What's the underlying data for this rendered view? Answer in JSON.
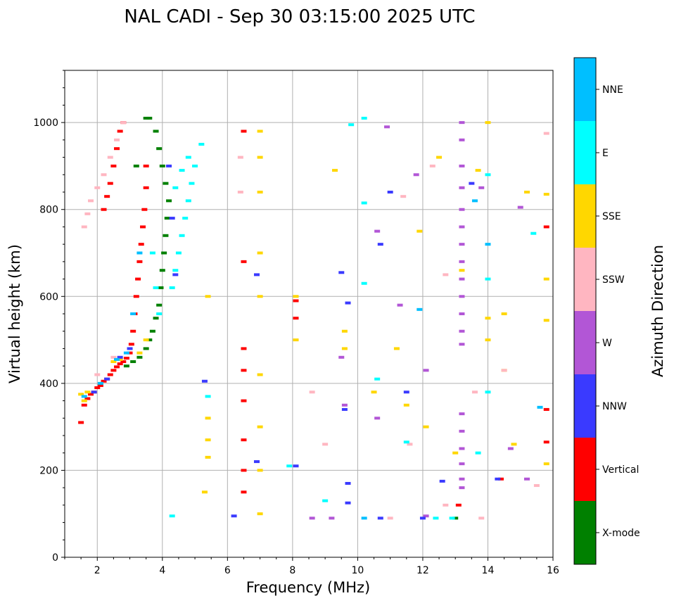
{
  "chart_data": {
    "type": "scatter",
    "title": "NAL CADI - Sep 30 03:15:00 2025 UTC",
    "xlabel": "Frequency (MHz)",
    "ylabel": "Virtual height (km)",
    "xlim": [
      1,
      16
    ],
    "ylim": [
      0,
      1120
    ],
    "xticks": [
      "2",
      "4",
      "6",
      "8",
      "10",
      "12",
      "14",
      "16"
    ],
    "yticks": [
      "0",
      "200",
      "400",
      "600",
      "800",
      "1000"
    ],
    "grid": true,
    "colorbar": {
      "label": "Azimuth Direction",
      "categories": [
        {
          "name": "X-mode",
          "color": "#008000"
        },
        {
          "name": "Vertical",
          "color": "#ff0000"
        },
        {
          "name": "NNW",
          "color": "#3a3aff"
        },
        {
          "name": "W",
          "color": "#b256d6"
        },
        {
          "name": "SSW",
          "color": "#ffb6c1"
        },
        {
          "name": "SSE",
          "color": "#ffd700"
        },
        {
          "name": "E",
          "color": "#00ffff"
        },
        {
          "name": "NNE",
          "color": "#00bfff"
        }
      ]
    },
    "series": [
      {
        "name": "Vertical",
        "color": "#ff0000",
        "points": [
          [
            1.5,
            310
          ],
          [
            1.6,
            350
          ],
          [
            1.7,
            365
          ],
          [
            1.8,
            375
          ],
          [
            1.9,
            380
          ],
          [
            2.0,
            390
          ],
          [
            2.1,
            395
          ],
          [
            2.2,
            405
          ],
          [
            2.3,
            410
          ],
          [
            2.4,
            420
          ],
          [
            2.5,
            430
          ],
          [
            2.6,
            438
          ],
          [
            2.7,
            445
          ],
          [
            2.8,
            450
          ],
          [
            2.9,
            458
          ],
          [
            3.0,
            470
          ],
          [
            3.05,
            490
          ],
          [
            3.1,
            520
          ],
          [
            3.15,
            560
          ],
          [
            3.2,
            600
          ],
          [
            3.25,
            640
          ],
          [
            3.3,
            680
          ],
          [
            3.35,
            720
          ],
          [
            3.4,
            760
          ],
          [
            3.45,
            800
          ],
          [
            3.5,
            850
          ],
          [
            3.5,
            900
          ],
          [
            2.2,
            800
          ],
          [
            2.3,
            830
          ],
          [
            2.4,
            860
          ],
          [
            2.5,
            900
          ],
          [
            2.6,
            940
          ],
          [
            2.7,
            980
          ],
          [
            2.8,
            1000
          ],
          [
            6.5,
            980
          ],
          [
            6.5,
            680
          ],
          [
            6.5,
            480
          ],
          [
            6.5,
            430
          ],
          [
            6.5,
            360
          ],
          [
            6.5,
            270
          ],
          [
            6.5,
            200
          ],
          [
            6.5,
            150
          ],
          [
            8.1,
            550
          ],
          [
            8.1,
            590
          ],
          [
            13.1,
            120
          ],
          [
            14.4,
            180
          ],
          [
            15.8,
            340
          ],
          [
            15.8,
            265
          ],
          [
            15.8,
            760
          ]
        ]
      },
      {
        "name": "X-mode",
        "color": "#008000",
        "points": [
          [
            2.9,
            440
          ],
          [
            3.1,
            450
          ],
          [
            3.3,
            460
          ],
          [
            3.5,
            480
          ],
          [
            3.6,
            500
          ],
          [
            3.7,
            520
          ],
          [
            3.8,
            550
          ],
          [
            3.9,
            580
          ],
          [
            3.95,
            620
          ],
          [
            4.0,
            660
          ],
          [
            4.05,
            700
          ],
          [
            4.1,
            740
          ],
          [
            4.15,
            780
          ],
          [
            4.2,
            820
          ],
          [
            4.1,
            860
          ],
          [
            4.0,
            900
          ],
          [
            3.9,
            940
          ],
          [
            3.8,
            980
          ],
          [
            3.6,
            1010
          ],
          [
            3.5,
            1010
          ],
          [
            3.2,
            900
          ],
          [
            13.0,
            90
          ]
        ]
      },
      {
        "name": "SSE",
        "color": "#ffd700",
        "points": [
          [
            1.5,
            375
          ],
          [
            1.6,
            360
          ],
          [
            1.7,
            380
          ],
          [
            2.5,
            450
          ],
          [
            2.7,
            455
          ],
          [
            3.3,
            470
          ],
          [
            3.5,
            500
          ],
          [
            5.3,
            150
          ],
          [
            5.4,
            230
          ],
          [
            5.4,
            270
          ],
          [
            5.4,
            320
          ],
          [
            5.4,
            600
          ],
          [
            7.0,
            100
          ],
          [
            7.0,
            200
          ],
          [
            7.0,
            300
          ],
          [
            7.0,
            420
          ],
          [
            7.0,
            600
          ],
          [
            7.0,
            700
          ],
          [
            7.0,
            840
          ],
          [
            7.0,
            920
          ],
          [
            7.0,
            980
          ],
          [
            8.1,
            600
          ],
          [
            8.1,
            500
          ],
          [
            9.3,
            890
          ],
          [
            9.6,
            520
          ],
          [
            9.6,
            480
          ],
          [
            10.5,
            380
          ],
          [
            11.2,
            480
          ],
          [
            11.5,
            350
          ],
          [
            11.9,
            750
          ],
          [
            12.1,
            300
          ],
          [
            12.5,
            920
          ],
          [
            13.2,
            660
          ],
          [
            13.7,
            890
          ],
          [
            14.0,
            550
          ],
          [
            14.0,
            500
          ],
          [
            14.0,
            1000
          ],
          [
            14.5,
            560
          ],
          [
            14.5,
            430
          ],
          [
            14.8,
            260
          ],
          [
            15.2,
            840
          ],
          [
            15.8,
            640
          ],
          [
            15.8,
            545
          ],
          [
            15.8,
            835
          ],
          [
            15.8,
            215
          ],
          [
            13.0,
            240
          ]
        ]
      },
      {
        "name": "SSW",
        "color": "#ffb6c1",
        "points": [
          [
            1.6,
            760
          ],
          [
            1.7,
            790
          ],
          [
            1.8,
            820
          ],
          [
            2.0,
            850
          ],
          [
            2.2,
            880
          ],
          [
            2.4,
            920
          ],
          [
            2.6,
            960
          ],
          [
            2.8,
            1000
          ],
          [
            2.0,
            420
          ],
          [
            2.5,
            460
          ],
          [
            6.4,
            920
          ],
          [
            6.4,
            840
          ],
          [
            9.0,
            260
          ],
          [
            8.6,
            380
          ],
          [
            11.0,
            90
          ],
          [
            11.6,
            260
          ],
          [
            12.7,
            650
          ],
          [
            13.8,
            90
          ],
          [
            13.6,
            380
          ],
          [
            14.5,
            430
          ],
          [
            15.5,
            165
          ],
          [
            15.8,
            975
          ],
          [
            12.7,
            120
          ],
          [
            12.3,
            900
          ],
          [
            11.4,
            830
          ]
        ]
      },
      {
        "name": "W",
        "color": "#b256d6",
        "points": [
          [
            13.2,
            1000
          ],
          [
            13.2,
            960
          ],
          [
            13.2,
            900
          ],
          [
            13.2,
            850
          ],
          [
            13.2,
            800
          ],
          [
            13.2,
            760
          ],
          [
            13.2,
            720
          ],
          [
            13.2,
            680
          ],
          [
            13.2,
            640
          ],
          [
            13.2,
            600
          ],
          [
            13.2,
            560
          ],
          [
            13.2,
            520
          ],
          [
            13.2,
            490
          ],
          [
            13.2,
            330
          ],
          [
            13.2,
            290
          ],
          [
            13.2,
            250
          ],
          [
            13.2,
            215
          ],
          [
            13.2,
            180
          ],
          [
            13.2,
            160
          ],
          [
            9.5,
            460
          ],
          [
            9.6,
            350
          ],
          [
            10.6,
            750
          ],
          [
            10.6,
            320
          ],
          [
            10.9,
            990
          ],
          [
            11.3,
            580
          ],
          [
            11.8,
            880
          ],
          [
            12.1,
            430
          ],
          [
            12.1,
            95
          ],
          [
            13.8,
            850
          ],
          [
            14.7,
            250
          ],
          [
            15.0,
            805
          ],
          [
            15.2,
            180
          ],
          [
            8.6,
            90
          ],
          [
            9.2,
            90
          ]
        ]
      },
      {
        "name": "NNW",
        "color": "#3a3aff",
        "points": [
          [
            1.9,
            380
          ],
          [
            2.3,
            410
          ],
          [
            2.7,
            460
          ],
          [
            3.0,
            480
          ],
          [
            4.2,
            900
          ],
          [
            4.3,
            780
          ],
          [
            4.4,
            650
          ],
          [
            5.3,
            405
          ],
          [
            6.2,
            95
          ],
          [
            6.9,
            220
          ],
          [
            6.9,
            650
          ],
          [
            8.1,
            210
          ],
          [
            9.5,
            655
          ],
          [
            9.7,
            585
          ],
          [
            9.6,
            340
          ],
          [
            10.7,
            720
          ],
          [
            10.7,
            90
          ],
          [
            11.0,
            840
          ],
          [
            11.5,
            380
          ],
          [
            12.0,
            90
          ],
          [
            12.6,
            175
          ],
          [
            13.5,
            860
          ],
          [
            14.3,
            180
          ],
          [
            9.7,
            170
          ],
          [
            9.7,
            125
          ]
        ]
      },
      {
        "name": "E",
        "color": "#00ffff",
        "points": [
          [
            4.3,
            620
          ],
          [
            4.4,
            660
          ],
          [
            4.5,
            700
          ],
          [
            4.6,
            740
          ],
          [
            4.7,
            780
          ],
          [
            4.8,
            820
          ],
          [
            4.9,
            860
          ],
          [
            5.0,
            900
          ],
          [
            4.6,
            890
          ],
          [
            4.4,
            850
          ],
          [
            4.8,
            920
          ],
          [
            5.2,
            950
          ],
          [
            3.8,
            620
          ],
          [
            3.7,
            700
          ],
          [
            3.9,
            560
          ],
          [
            7.9,
            210
          ],
          [
            9.0,
            130
          ],
          [
            9.8,
            995
          ],
          [
            10.2,
            1010
          ],
          [
            10.2,
            815
          ],
          [
            10.2,
            630
          ],
          [
            10.6,
            410
          ],
          [
            11.5,
            265
          ],
          [
            12.4,
            90
          ],
          [
            12.9,
            90
          ],
          [
            13.7,
            240
          ],
          [
            14.0,
            380
          ],
          [
            14.0,
            640
          ],
          [
            14.0,
            880
          ],
          [
            15.4,
            745
          ],
          [
            5.4,
            370
          ],
          [
            4.3,
            95
          ]
        ]
      },
      {
        "name": "NNE",
        "color": "#00bfff",
        "points": [
          [
            1.6,
            370
          ],
          [
            2.1,
            400
          ],
          [
            2.6,
            455
          ],
          [
            2.9,
            470
          ],
          [
            3.1,
            560
          ],
          [
            3.3,
            700
          ],
          [
            15.6,
            345
          ],
          [
            14.0,
            720
          ],
          [
            13.6,
            820
          ],
          [
            11.9,
            570
          ],
          [
            10.2,
            90
          ]
        ]
      }
    ]
  }
}
